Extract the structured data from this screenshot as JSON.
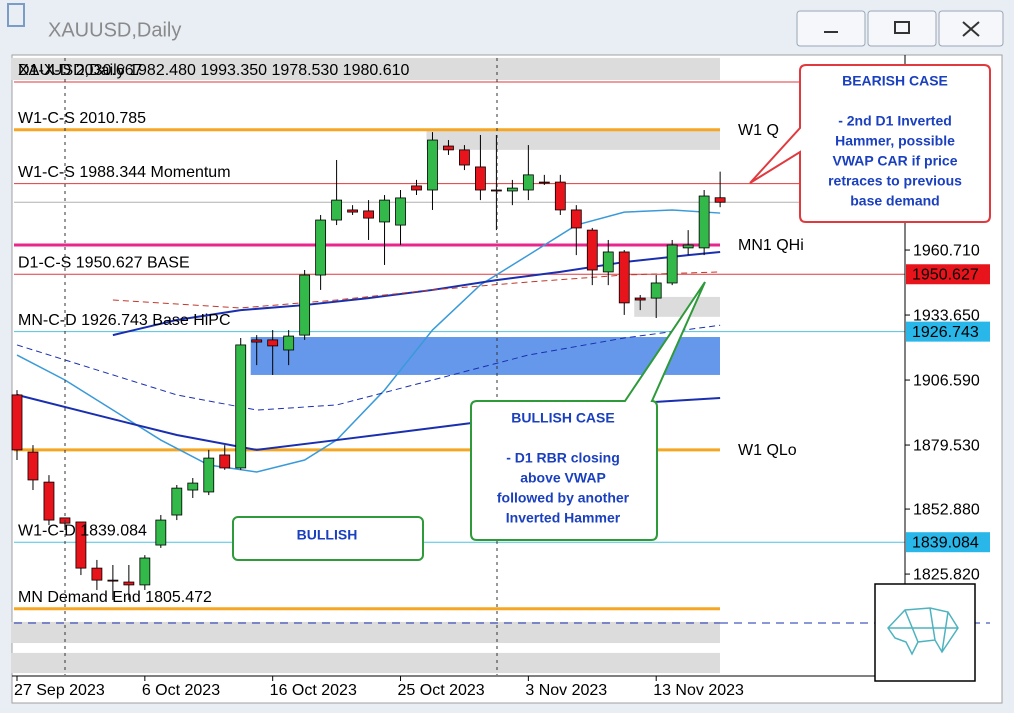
{
  "window": {
    "title": "XAUUSD,Daily"
  },
  "chart_data": {
    "type": "candlestick",
    "header": "XAUUSD,Daily  1982.480 1993.350 1978.530 1980.610",
    "categories": [
      "27 Sep 2023",
      null,
      null,
      null,
      null,
      null,
      null,
      null,
      "6 Oct 2023",
      null,
      null,
      null,
      null,
      null,
      null,
      null,
      "16 Oct 2023",
      null,
      null,
      null,
      null,
      null,
      null,
      null,
      "25 Oct 2023",
      null,
      null,
      null,
      null,
      null,
      null,
      null,
      "3 Nov 2023",
      null,
      null,
      null,
      null,
      null,
      null,
      null,
      "13 Nov 2023",
      null,
      null,
      null,
      null
    ],
    "open": [
      1900.4,
      1876.6,
      1864.1,
      1849.2,
      1847.5,
      1828.3,
      1823.3,
      1822.5,
      1821.3,
      1837.9,
      1850.4,
      1860.8,
      1860.0,
      1875.4,
      1870.0,
      1923.3,
      1923.3,
      1919.1,
      1925.3,
      1950.3,
      1973.2,
      1977.4,
      1977.0,
      1972.4,
      1971.1,
      1987.4,
      1985.7,
      2004.0,
      2002.4,
      1995.3,
      1985.7,
      1985.3,
      1985.7,
      1989.0,
      1989.0,
      1977.4,
      1969.0,
      1951.6,
      1959.9,
      1940.7,
      1940.7,
      1947.0,
      1961.6,
      1961.6,
      1982.48
    ],
    "high": [
      1902.4,
      1879.5,
      1867.0,
      1849.2,
      1847.5,
      1831.7,
      1829.6,
      1829.6,
      1833.7,
      1850.4,
      1862.9,
      1865.8,
      1877.5,
      1879.5,
      1924.1,
      1925.3,
      1927.4,
      1927.4,
      1952.4,
      1975.3,
      1998.2,
      1979.4,
      1981.5,
      1983.6,
      1985.7,
      1989.9,
      2009.8,
      2006.5,
      2004.4,
      2008.6,
      2008.6,
      1989.9,
      2004.4,
      1992.0,
      1992.0,
      1979.4,
      1969.9,
      1964.9,
      1960.7,
      1942.0,
      1950.3,
      1964.9,
      1969.0,
      1985.7,
      1993.35
    ],
    "low": [
      1873.3,
      1860.8,
      1846.2,
      1844.2,
      1825.4,
      1819.2,
      1815.0,
      1815.0,
      1819.2,
      1836.7,
      1848.3,
      1857.5,
      1858.7,
      1869.2,
      1869.2,
      1912.8,
      1908.7,
      1912.8,
      1923.3,
      1944.1,
      1971.1,
      1975.3,
      1964.9,
      1954.5,
      1962.8,
      1983.6,
      1977.4,
      2000.3,
      1994.0,
      1981.5,
      1969.0,
      1979.4,
      1981.5,
      1987.8,
      1975.3,
      1958.6,
      1946.1,
      1946.1,
      1933.7,
      1935.7,
      1932.4,
      1946.1,
      1958.6,
      1958.6,
      1978.53
    ],
    "close": [
      1877.5,
      1865.0,
      1848.3,
      1847.0,
      1828.3,
      1823.3,
      1822.9,
      1821.3,
      1832.5,
      1848.3,
      1861.6,
      1863.7,
      1874.1,
      1870.0,
      1921.2,
      1922.4,
      1920.8,
      1924.9,
      1950.3,
      1973.2,
      1981.5,
      1976.5,
      1974.0,
      1981.5,
      1982.4,
      1985.7,
      2006.5,
      2002.4,
      1996.1,
      1985.7,
      1985.3,
      1986.5,
      1992.0,
      1988.6,
      1977.4,
      1969.9,
      1952.4,
      1959.9,
      1938.7,
      1939.9,
      1947.0,
      1962.8,
      1962.8,
      1983.2,
      1980.61
    ],
    "up_color": "#33b84a",
    "down_color": "#e8141b",
    "ylim": [
      1783.8,
      2041.9
    ],
    "yticks": [
      {
        "value": 1960.71,
        "label": "1960.710"
      },
      {
        "value": 1933.65,
        "label": "1933.650"
      },
      {
        "value": 1906.59,
        "label": "1906.590"
      },
      {
        "value": 1879.53,
        "label": "1879.530"
      },
      {
        "value": 1852.88,
        "label": "1852.880"
      },
      {
        "value": 1825.82,
        "label": "1825.820"
      }
    ],
    "zones": [
      {
        "low": 2031.5,
        "high": 2040.7,
        "start": 0,
        "color": "#dcdcdc"
      },
      {
        "low": 2002.4,
        "high": 2010.7,
        "start": 26,
        "color": "#dcdcdc"
      },
      {
        "low": 1932.9,
        "high": 1941.2,
        "start": 39,
        "color": "#dcdcdc"
      },
      {
        "low": 1908.7,
        "high": 1924.5,
        "start": 15,
        "color": "#4a86e8"
      },
      {
        "low": 1797.1,
        "high": 1805.9,
        "start": 0,
        "color": "#dcdcdc"
      },
      {
        "low": 1784.6,
        "high": 1793.0,
        "start": 0,
        "color": "#dcdcdc"
      }
    ],
    "levels": [
      {
        "label": "D1-X-D 2030.667",
        "value": 2030.667,
        "color": "#e0393e",
        "width": 1
      },
      {
        "label": "W1-C-S 2010.785",
        "right_label": "W1 Q",
        "value": 2010.785,
        "color": "#f5a623",
        "width": 3
      },
      {
        "label": "W1-C-S 1988.344 Momentum",
        "value": 1988.344,
        "color": "#e0393e",
        "width": 1
      },
      {
        "value": 1980.61,
        "color": "#b0b0b0",
        "width": 1
      },
      {
        "right_label": "MN1 QHi",
        "value": 1962.8,
        "color": "#e8268c",
        "width": 3
      },
      {
        "label": "D1-C-S 1950.627 BASE",
        "tag": "1950.627",
        "value": 1950.627,
        "color": "#e0393e",
        "width": 1
      },
      {
        "label": "MN-C-D 1926.743 Base HiPC",
        "tag": "1926.743",
        "value": 1926.743,
        "color": "#4fc3e0",
        "width": 1
      },
      {
        "right_label": "W1 QLo",
        "value": 1877.5,
        "color": "#f5a623",
        "width": 3
      },
      {
        "label": "W1-C-D 1839.084",
        "tag": "1839.084",
        "value": 1839.084,
        "color": "#4fc3e0",
        "width": 1
      },
      {
        "label": "MN Demand End 1805.472",
        "value": 1811.4,
        "color": "#f5a623",
        "width": 3
      },
      {
        "value": 1805.472,
        "color": "#1a2fb0",
        "width": 1,
        "dashed": true
      }
    ],
    "lines": [
      {
        "color": "#3a9ad9",
        "width": 1.5,
        "dashed": false,
        "x": [
          0,
          3,
          6,
          9,
          12,
          15,
          18,
          20,
          23,
          26,
          29,
          32,
          35,
          38,
          41,
          44
        ],
        "values": [
          1917.0,
          1906.6,
          1894.1,
          1881.6,
          1871.2,
          1868.3,
          1873.3,
          1881.6,
          1902.4,
          1927.4,
          1946.2,
          1958.6,
          1971.1,
          1976.5,
          1977.4,
          1976.1
        ]
      },
      {
        "color": "#1a2fb0",
        "width": 2,
        "dashed": false,
        "x": [
          0,
          5,
          10,
          15,
          20,
          25,
          30,
          35,
          40,
          44
        ],
        "values": [
          1900.4,
          1892.0,
          1883.7,
          1877.5,
          1881.6,
          1885.8,
          1890.0,
          1894.1,
          1897.5,
          1899.1
        ]
      },
      {
        "color": "#1a2fb0",
        "width": 2,
        "dashed": false,
        "x": [
          6,
          10,
          14,
          18,
          22,
          26,
          30,
          34,
          38,
          42,
          44
        ],
        "values": [
          1925.3,
          1931.6,
          1935.7,
          1937.8,
          1940.7,
          1944.1,
          1948.2,
          1951.6,
          1955.7,
          1958.6,
          1959.9
        ]
      },
      {
        "color": "#c0392b",
        "width": 1,
        "dashed": true,
        "x": [
          6,
          14,
          20,
          26,
          32,
          38,
          44
        ],
        "values": [
          1939.9,
          1936.6,
          1939.9,
          1944.1,
          1947.4,
          1950.3,
          1951.6
        ]
      },
      {
        "color": "#1a2fb0",
        "width": 1,
        "dashed": true,
        "x": [
          0,
          5,
          10,
          15,
          20,
          26,
          32,
          38,
          44
        ],
        "values": [
          1921.2,
          1910.8,
          1900.4,
          1894.1,
          1896.2,
          1906.6,
          1917.0,
          1924.1,
          1929.4
        ]
      }
    ]
  },
  "annotations": {
    "bearish": {
      "title": "BEARISH CASE",
      "lines": [
        "- 2nd D1 Inverted",
        "Hammer, possible",
        "VWAP CAR if price",
        "retraces to previous",
        "base demand"
      ]
    },
    "bullish": {
      "title": "BULLISH CASE",
      "lines": [
        "- D1 RBR closing",
        "above VWAP",
        "followed by another",
        "Inverted Hammer"
      ]
    },
    "label": "BULLISH"
  }
}
